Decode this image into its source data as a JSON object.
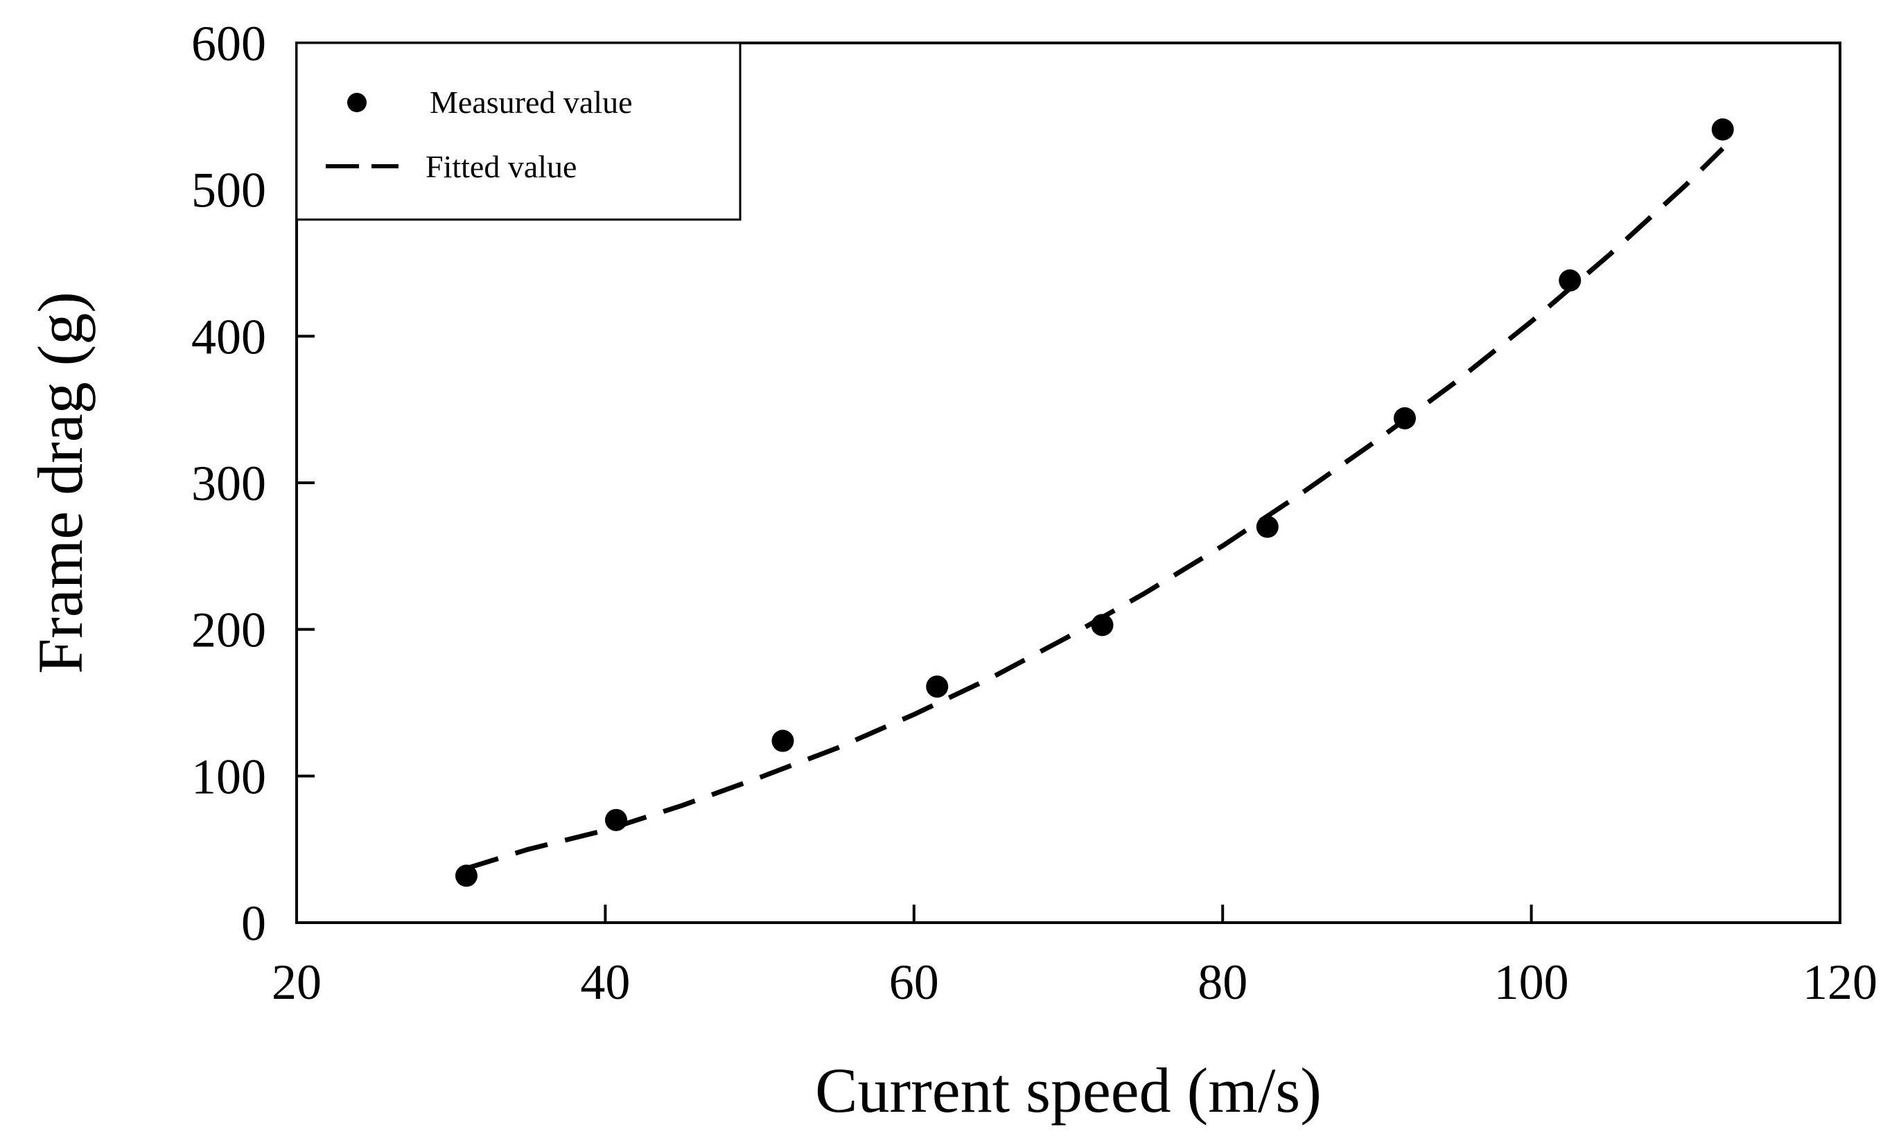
{
  "chart_data": {
    "type": "scatter",
    "title": "",
    "xlabel": "Current speed (m/s)",
    "ylabel": "Frame drag (g)",
    "xlim": [
      20,
      120
    ],
    "ylim": [
      0,
      600
    ],
    "xticks": [
      20,
      40,
      60,
      80,
      100,
      120
    ],
    "yticks": [
      0,
      100,
      200,
      300,
      400,
      500,
      600
    ],
    "grid": false,
    "legend_position": "top-left",
    "series": [
      {
        "name": "Measured value",
        "kind": "markers",
        "marker": "filled-circle",
        "color": "#000000",
        "x": [
          31,
          40.7,
          51.5,
          61.5,
          72.2,
          82.9,
          91.8,
          102.5,
          112.4
        ],
        "y": [
          32,
          70,
          124,
          161,
          203,
          270,
          344,
          438,
          541
        ]
      },
      {
        "name": "Fitted value",
        "kind": "dashed-line",
        "color": "#000000",
        "x": [
          31,
          35,
          40,
          45,
          50,
          55,
          60,
          65,
          70,
          75,
          80,
          85,
          90,
          95,
          100,
          105,
          110,
          112.4
        ],
        "y": [
          37,
          50,
          63,
          80,
          99,
          119,
          142,
          167,
          195,
          225,
          257,
          292,
          329,
          368,
          410,
          455,
          503,
          528
        ]
      }
    ]
  }
}
